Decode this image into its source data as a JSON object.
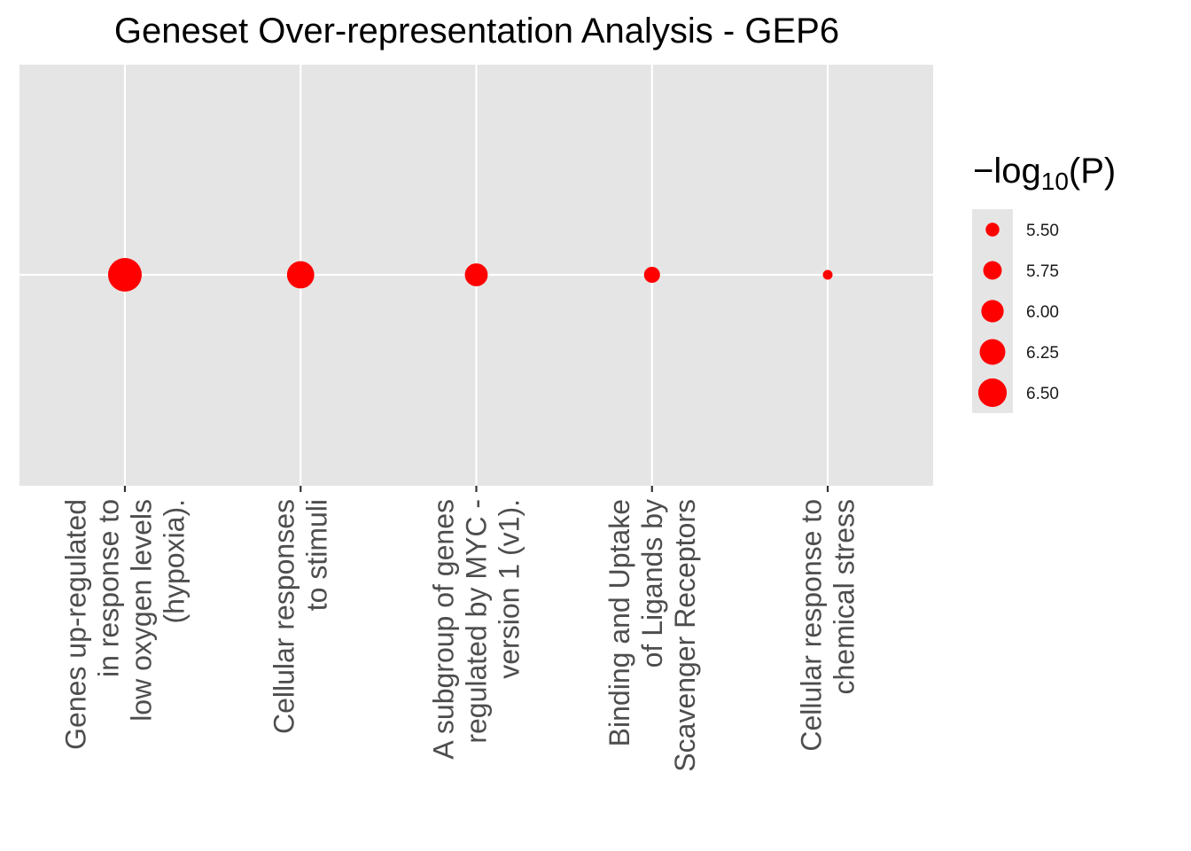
{
  "chart_data": {
    "type": "scatter",
    "title": "Geneset Over-representation Analysis - GEP6",
    "xlabel": "",
    "ylabel": "",
    "categories": [
      [
        "Genes up-regulated",
        "in response to",
        "low oxygen levels",
        "(hypoxia)."
      ],
      [
        "Cellular responses",
        "to stimuli"
      ],
      [
        "A subgroup of genes",
        "regulated by MYC -",
        "version 1 (v1)."
      ],
      [
        "Binding and Uptake",
        "of Ligands by",
        "Scavenger Receptors"
      ],
      [
        "Cellular response to",
        "chemical stress"
      ]
    ],
    "series": [
      {
        "values": [
          6.6,
          6.12,
          5.85,
          5.52,
          5.32
        ]
      }
    ],
    "size_range": [
      5.3,
      6.6
    ],
    "grid": true,
    "legend": {
      "position": "right",
      "title_prefix": "−log",
      "title_sub": "10",
      "title_suffix": "(P)",
      "entries": [
        {
          "label": "5.50",
          "value": 5.5
        },
        {
          "label": "5.75",
          "value": 5.75
        },
        {
          "label": "6.00",
          "value": 6.0
        },
        {
          "label": "6.25",
          "value": 6.25
        },
        {
          "label": "6.50",
          "value": 6.5
        }
      ]
    },
    "colors": {
      "point": "#ff0000",
      "panel": "#e5e5e5",
      "grid": "#ffffff",
      "tick": "#333333"
    }
  }
}
